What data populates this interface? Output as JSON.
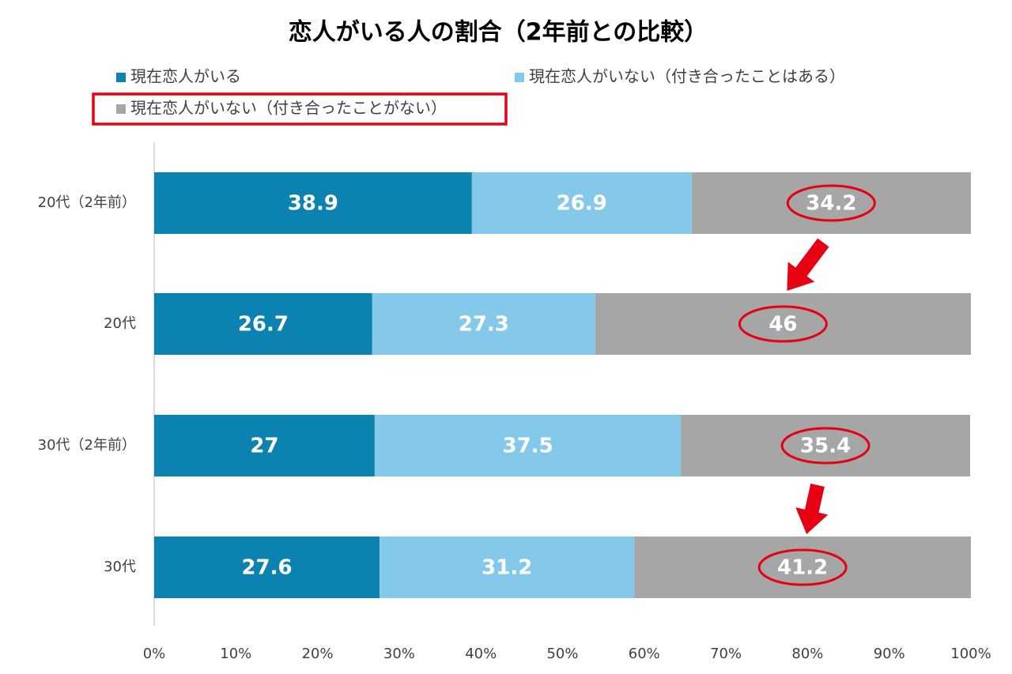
{
  "chart_data": {
    "type": "stacked-bar-horizontal",
    "title": "恋人がいる人の割合（2年前との比較）",
    "categories": [
      "20代（2年前）",
      "20代",
      "30代（2年前）",
      "30代"
    ],
    "series": [
      {
        "name": "現在恋人がいる",
        "color": "#0b82b0",
        "values": [
          38.9,
          26.7,
          27,
          27.6
        ]
      },
      {
        "name": "現在恋人がいない（付き合ったことはある）",
        "color": "#85c9ea",
        "values": [
          26.9,
          27.3,
          37.5,
          31.2
        ]
      },
      {
        "name": "現在恋人がいない（付き合ったことがない）",
        "color": "#a6a6a6",
        "values": [
          34.2,
          46,
          35.4,
          41.2
        ]
      }
    ],
    "xlim": [
      0,
      100
    ],
    "xticks": [
      {
        "value": 0,
        "label": "0%"
      },
      {
        "value": 10,
        "label": "10%"
      },
      {
        "value": 20,
        "label": "20%"
      },
      {
        "value": 30,
        "label": "30%"
      },
      {
        "value": 40,
        "label": "40%"
      },
      {
        "value": 50,
        "label": "50%"
      },
      {
        "value": 60,
        "label": "60%"
      },
      {
        "value": 70,
        "label": "70%"
      },
      {
        "value": 80,
        "label": "80%"
      },
      {
        "value": 90,
        "label": "90%"
      },
      {
        "value": 100,
        "label": "100%"
      }
    ]
  }
}
